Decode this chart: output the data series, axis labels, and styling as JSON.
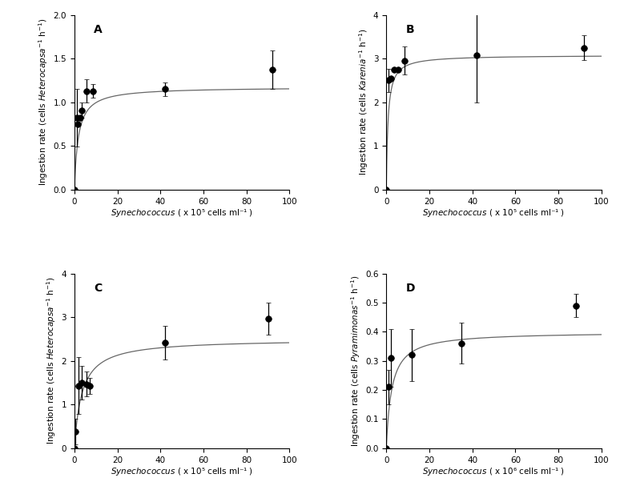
{
  "panels": [
    {
      "label": "A",
      "predator_italic": "Heterocapsa",
      "xlabel_unit": "x 10⁵ cells ml⁻¹",
      "ylim": [
        0,
        2.0
      ],
      "yticks": [
        0.0,
        0.5,
        1.0,
        1.5,
        2.0
      ],
      "xlim": [
        0,
        100
      ],
      "xticks": [
        0,
        20,
        40,
        60,
        80,
        100
      ],
      "x": [
        0,
        1.0,
        1.5,
        2.5,
        3.5,
        5.5,
        8.5,
        42,
        92
      ],
      "y": [
        0.0,
        0.82,
        0.75,
        0.82,
        0.91,
        1.13,
        1.13,
        1.15,
        1.37
      ],
      "yerr": [
        0,
        0.33,
        0,
        0,
        0.09,
        0.13,
        0.08,
        0.08,
        0.22
      ],
      "curve_Imax": 1.175,
      "curve_Ks": 1.8
    },
    {
      "label": "B",
      "predator_italic": "Karenia",
      "xlabel_unit": "x 10⁵ cells ml⁻¹",
      "ylim": [
        0,
        4.0
      ],
      "yticks": [
        0.0,
        1.0,
        2.0,
        3.0,
        4.0
      ],
      "xlim": [
        0,
        100
      ],
      "xticks": [
        0,
        20,
        40,
        60,
        80,
        100
      ],
      "x": [
        0,
        1.0,
        2.0,
        3.5,
        5.5,
        8.5,
        42,
        92
      ],
      "y": [
        0.0,
        2.5,
        2.55,
        2.75,
        2.75,
        2.95,
        3.08,
        3.25
      ],
      "yerr": [
        0,
        0.27,
        0,
        0,
        0,
        0.32,
        1.08,
        0.28
      ],
      "curve_Imax": 3.08,
      "curve_Ks": 0.8
    },
    {
      "label": "C",
      "predator_italic": "Heterocapsa",
      "xlabel_unit": "x 10⁵ cells ml⁻¹",
      "ylim": [
        0,
        4.0
      ],
      "yticks": [
        0.0,
        1.0,
        2.0,
        3.0,
        4.0
      ],
      "xlim": [
        0,
        100
      ],
      "xticks": [
        0,
        20,
        40,
        60,
        80,
        100
      ],
      "x": [
        0,
        0.5,
        2.0,
        3.5,
        5.5,
        7.0,
        42,
        90
      ],
      "y": [
        0.0,
        0.38,
        1.43,
        1.5,
        1.47,
        1.43,
        2.42,
        2.97
      ],
      "yerr": [
        0,
        0.3,
        0.65,
        0.38,
        0.28,
        0.18,
        0.38,
        0.37
      ],
      "curve_Imax": 2.5,
      "curve_Ks": 3.5
    },
    {
      "label": "D",
      "predator_italic": "Pyramimonas",
      "xlabel_unit": "x 10⁶ cells ml⁻¹",
      "ylim": [
        0,
        0.6
      ],
      "yticks": [
        0.0,
        0.1,
        0.2,
        0.3,
        0.4,
        0.5,
        0.6
      ],
      "xlim": [
        0,
        100
      ],
      "xticks": [
        0,
        20,
        40,
        60,
        80,
        100
      ],
      "x": [
        0,
        1.0,
        2.0,
        12.0,
        35.0,
        88.0
      ],
      "y": [
        0.0,
        0.21,
        0.31,
        0.32,
        0.36,
        0.49
      ],
      "yerr": [
        0,
        0.06,
        0.1,
        0.09,
        0.07,
        0.04
      ],
      "curve_Imax": 0.4,
      "curve_Ks": 2.5
    }
  ]
}
